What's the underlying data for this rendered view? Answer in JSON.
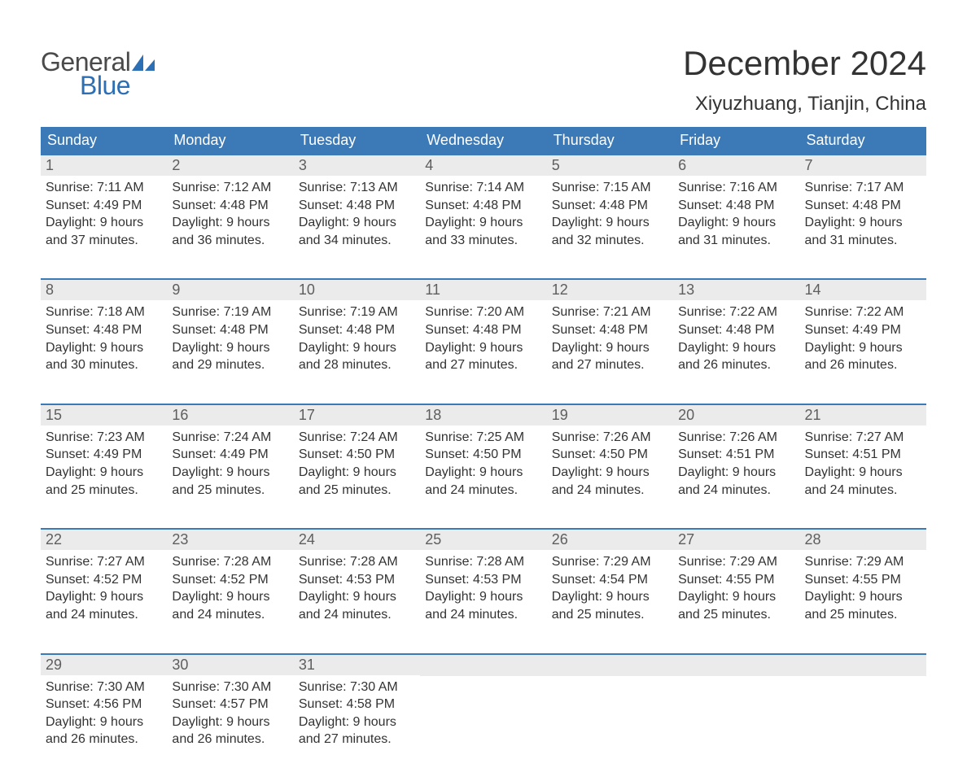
{
  "logo": {
    "text1": "General",
    "text2": "Blue",
    "sail_color": "#2d6fb5",
    "text1_color": "#4a4a4a"
  },
  "title": "December 2024",
  "location": "Xiyuzhuang, Tianjin, China",
  "colors": {
    "header_bg": "#3b79b7",
    "header_text": "#ffffff",
    "daynum_bg": "#ebebeb",
    "daynum_text": "#5e5e5e",
    "body_text": "#333333",
    "border": "#3b79b7",
    "background": "#ffffff"
  },
  "typography": {
    "title_fontsize": 42,
    "location_fontsize": 24,
    "header_fontsize": 18,
    "daynum_fontsize": 18,
    "body_fontsize": 16,
    "logo_fontsize": 32
  },
  "day_headers": [
    "Sunday",
    "Monday",
    "Tuesday",
    "Wednesday",
    "Thursday",
    "Friday",
    "Saturday"
  ],
  "weeks": [
    [
      {
        "num": "1",
        "sunrise": "Sunrise: 7:11 AM",
        "sunset": "Sunset: 4:49 PM",
        "d1": "Daylight: 9 hours",
        "d2": "and 37 minutes."
      },
      {
        "num": "2",
        "sunrise": "Sunrise: 7:12 AM",
        "sunset": "Sunset: 4:48 PM",
        "d1": "Daylight: 9 hours",
        "d2": "and 36 minutes."
      },
      {
        "num": "3",
        "sunrise": "Sunrise: 7:13 AM",
        "sunset": "Sunset: 4:48 PM",
        "d1": "Daylight: 9 hours",
        "d2": "and 34 minutes."
      },
      {
        "num": "4",
        "sunrise": "Sunrise: 7:14 AM",
        "sunset": "Sunset: 4:48 PM",
        "d1": "Daylight: 9 hours",
        "d2": "and 33 minutes."
      },
      {
        "num": "5",
        "sunrise": "Sunrise: 7:15 AM",
        "sunset": "Sunset: 4:48 PM",
        "d1": "Daylight: 9 hours",
        "d2": "and 32 minutes."
      },
      {
        "num": "6",
        "sunrise": "Sunrise: 7:16 AM",
        "sunset": "Sunset: 4:48 PM",
        "d1": "Daylight: 9 hours",
        "d2": "and 31 minutes."
      },
      {
        "num": "7",
        "sunrise": "Sunrise: 7:17 AM",
        "sunset": "Sunset: 4:48 PM",
        "d1": "Daylight: 9 hours",
        "d2": "and 31 minutes."
      }
    ],
    [
      {
        "num": "8",
        "sunrise": "Sunrise: 7:18 AM",
        "sunset": "Sunset: 4:48 PM",
        "d1": "Daylight: 9 hours",
        "d2": "and 30 minutes."
      },
      {
        "num": "9",
        "sunrise": "Sunrise: 7:19 AM",
        "sunset": "Sunset: 4:48 PM",
        "d1": "Daylight: 9 hours",
        "d2": "and 29 minutes."
      },
      {
        "num": "10",
        "sunrise": "Sunrise: 7:19 AM",
        "sunset": "Sunset: 4:48 PM",
        "d1": "Daylight: 9 hours",
        "d2": "and 28 minutes."
      },
      {
        "num": "11",
        "sunrise": "Sunrise: 7:20 AM",
        "sunset": "Sunset: 4:48 PM",
        "d1": "Daylight: 9 hours",
        "d2": "and 27 minutes."
      },
      {
        "num": "12",
        "sunrise": "Sunrise: 7:21 AM",
        "sunset": "Sunset: 4:48 PM",
        "d1": "Daylight: 9 hours",
        "d2": "and 27 minutes."
      },
      {
        "num": "13",
        "sunrise": "Sunrise: 7:22 AM",
        "sunset": "Sunset: 4:48 PM",
        "d1": "Daylight: 9 hours",
        "d2": "and 26 minutes."
      },
      {
        "num": "14",
        "sunrise": "Sunrise: 7:22 AM",
        "sunset": "Sunset: 4:49 PM",
        "d1": "Daylight: 9 hours",
        "d2": "and 26 minutes."
      }
    ],
    [
      {
        "num": "15",
        "sunrise": "Sunrise: 7:23 AM",
        "sunset": "Sunset: 4:49 PM",
        "d1": "Daylight: 9 hours",
        "d2": "and 25 minutes."
      },
      {
        "num": "16",
        "sunrise": "Sunrise: 7:24 AM",
        "sunset": "Sunset: 4:49 PM",
        "d1": "Daylight: 9 hours",
        "d2": "and 25 minutes."
      },
      {
        "num": "17",
        "sunrise": "Sunrise: 7:24 AM",
        "sunset": "Sunset: 4:50 PM",
        "d1": "Daylight: 9 hours",
        "d2": "and 25 minutes."
      },
      {
        "num": "18",
        "sunrise": "Sunrise: 7:25 AM",
        "sunset": "Sunset: 4:50 PM",
        "d1": "Daylight: 9 hours",
        "d2": "and 24 minutes."
      },
      {
        "num": "19",
        "sunrise": "Sunrise: 7:26 AM",
        "sunset": "Sunset: 4:50 PM",
        "d1": "Daylight: 9 hours",
        "d2": "and 24 minutes."
      },
      {
        "num": "20",
        "sunrise": "Sunrise: 7:26 AM",
        "sunset": "Sunset: 4:51 PM",
        "d1": "Daylight: 9 hours",
        "d2": "and 24 minutes."
      },
      {
        "num": "21",
        "sunrise": "Sunrise: 7:27 AM",
        "sunset": "Sunset: 4:51 PM",
        "d1": "Daylight: 9 hours",
        "d2": "and 24 minutes."
      }
    ],
    [
      {
        "num": "22",
        "sunrise": "Sunrise: 7:27 AM",
        "sunset": "Sunset: 4:52 PM",
        "d1": "Daylight: 9 hours",
        "d2": "and 24 minutes."
      },
      {
        "num": "23",
        "sunrise": "Sunrise: 7:28 AM",
        "sunset": "Sunset: 4:52 PM",
        "d1": "Daylight: 9 hours",
        "d2": "and 24 minutes."
      },
      {
        "num": "24",
        "sunrise": "Sunrise: 7:28 AM",
        "sunset": "Sunset: 4:53 PM",
        "d1": "Daylight: 9 hours",
        "d2": "and 24 minutes."
      },
      {
        "num": "25",
        "sunrise": "Sunrise: 7:28 AM",
        "sunset": "Sunset: 4:53 PM",
        "d1": "Daylight: 9 hours",
        "d2": "and 24 minutes."
      },
      {
        "num": "26",
        "sunrise": "Sunrise: 7:29 AM",
        "sunset": "Sunset: 4:54 PM",
        "d1": "Daylight: 9 hours",
        "d2": "and 25 minutes."
      },
      {
        "num": "27",
        "sunrise": "Sunrise: 7:29 AM",
        "sunset": "Sunset: 4:55 PM",
        "d1": "Daylight: 9 hours",
        "d2": "and 25 minutes."
      },
      {
        "num": "28",
        "sunrise": "Sunrise: 7:29 AM",
        "sunset": "Sunset: 4:55 PM",
        "d1": "Daylight: 9 hours",
        "d2": "and 25 minutes."
      }
    ],
    [
      {
        "num": "29",
        "sunrise": "Sunrise: 7:30 AM",
        "sunset": "Sunset: 4:56 PM",
        "d1": "Daylight: 9 hours",
        "d2": "and 26 minutes."
      },
      {
        "num": "30",
        "sunrise": "Sunrise: 7:30 AM",
        "sunset": "Sunset: 4:57 PM",
        "d1": "Daylight: 9 hours",
        "d2": "and 26 minutes."
      },
      {
        "num": "31",
        "sunrise": "Sunrise: 7:30 AM",
        "sunset": "Sunset: 4:58 PM",
        "d1": "Daylight: 9 hours",
        "d2": "and 27 minutes."
      },
      {
        "empty": true
      },
      {
        "empty": true
      },
      {
        "empty": true
      },
      {
        "empty": true
      }
    ]
  ]
}
